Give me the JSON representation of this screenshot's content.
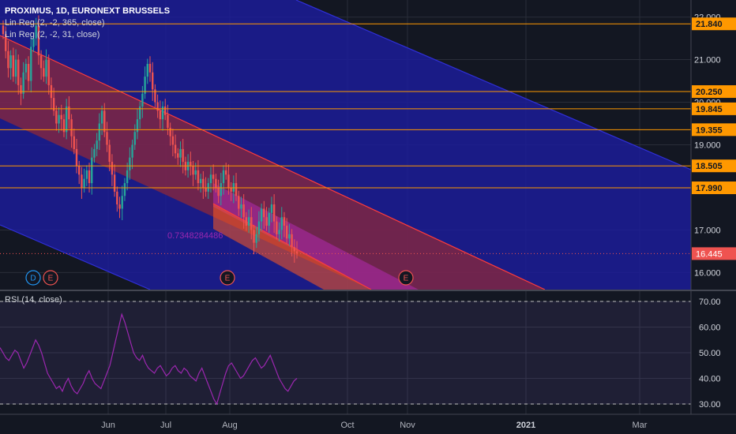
{
  "header": {
    "symbol": "PROXIMUS, 1D, EURONEXT BRUSSELS",
    "indicator_1": "Lin Reg (2, -2, 365, close)",
    "indicator_2": "Lin Reg (2, -2, 31, close)"
  },
  "rsi_panel": {
    "label": "RSI (14, close)",
    "overbought": 70,
    "oversold": 30,
    "color": "#9c27b0"
  },
  "chart_data": {
    "type": "candlestick",
    "price_axis": {
      "ticks": [
        "22.000",
        "21.000",
        "20.000",
        "19.000",
        "17.000",
        "16.000"
      ],
      "range": [
        15.6,
        22.4
      ]
    },
    "rsi_axis": {
      "ticks": [
        "70.00",
        "60.00",
        "50.00",
        "40.00",
        "30.00"
      ],
      "range": [
        26,
        74
      ]
    },
    "x_axis": {
      "ticks": [
        "Jun",
        "Jul",
        "Aug",
        "Oct",
        "Nov",
        "2021",
        "Mar"
      ],
      "bold": [
        "2021"
      ]
    },
    "horizontal_levels": [
      "21.840",
      "20.250",
      "19.845",
      "19.355",
      "18.505",
      "17.990"
    ],
    "level_color": "#ff9800",
    "last_price": "16.445",
    "last_price_color": "#ef5350",
    "annotation": "0.7348284486",
    "events": [
      {
        "label": "D",
        "color": "#2196f3"
      },
      {
        "label": "E",
        "color": "#ef5350"
      },
      {
        "label": "E",
        "color": "#ef5350"
      },
      {
        "label": "E",
        "color": "#ef5350"
      }
    ],
    "up_color": "#26a69a",
    "down_color": "#ef5350",
    "closes": [
      21.6,
      21.2,
      20.8,
      21.1,
      20.6,
      21.0,
      20.4,
      20.2,
      20.7,
      20.9,
      20.5,
      21.3,
      21.5,
      21.8,
      21.1,
      20.8,
      20.6,
      21.0,
      20.4,
      20.1,
      19.8,
      19.5,
      19.7,
      19.6,
      19.3,
      19.9,
      19.6,
      19.2,
      18.9,
      18.5,
      18.3,
      18.0,
      18.2,
      18.4,
      18.1,
      18.7,
      18.9,
      19.1,
      19.5,
      19.8,
      19.3,
      19.0,
      18.6,
      18.3,
      17.9,
      17.6,
      17.5,
      17.8,
      18.1,
      18.4,
      18.7,
      19.0,
      19.3,
      19.6,
      19.9,
      20.2,
      20.6,
      20.9,
      20.7,
      20.3,
      20.0,
      19.8,
      19.6,
      19.9,
      19.7,
      19.4,
      19.2,
      19.0,
      18.8,
      18.7,
      18.9,
      18.6,
      18.4,
      18.6,
      18.5,
      18.3,
      18.4,
      18.1,
      18.2,
      18.0,
      17.9,
      18.1,
      18.3,
      18.2,
      18.0,
      17.8,
      18.1,
      18.4,
      18.3,
      18.0,
      17.9,
      18.1,
      17.8,
      17.5,
      17.6,
      17.3,
      17.1,
      17.3,
      17.0,
      16.7,
      16.9,
      17.2,
      17.5,
      17.3,
      17.1,
      17.4,
      17.6,
      17.2,
      16.9,
      17.0,
      17.3,
      17.1,
      16.8,
      16.9,
      16.6,
      16.5,
      16.45
    ],
    "rsi": [
      52,
      50,
      48,
      47,
      49,
      51,
      50,
      47,
      44,
      46,
      49,
      52,
      55,
      53,
      50,
      46,
      42,
      40,
      38,
      36,
      37,
      35,
      38,
      40,
      37,
      35,
      34,
      36,
      38,
      41,
      43,
      40,
      38,
      37,
      36,
      39,
      42,
      45,
      50,
      55,
      60,
      65,
      62,
      58,
      54,
      50,
      48,
      47,
      49,
      46,
      44,
      43,
      42,
      44,
      45,
      43,
      41,
      42,
      44,
      45,
      43,
      42,
      44,
      43,
      41,
      40,
      39,
      42,
      44,
      41,
      38,
      35,
      32,
      30,
      34,
      38,
      42,
      45,
      46,
      44,
      42,
      40,
      41,
      43,
      45,
      47,
      48,
      46,
      44,
      45,
      47,
      49,
      46,
      43,
      40,
      38,
      36,
      35,
      37,
      39,
      40
    ]
  }
}
